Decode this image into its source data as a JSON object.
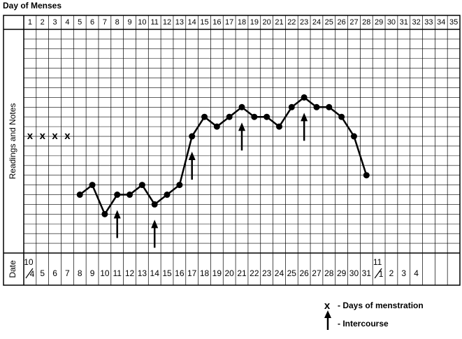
{
  "chart_data": {
    "type": "line",
    "title": "Day of Menses",
    "y_label": "Readings and Notes",
    "date_label": "Date",
    "categories": [
      "1",
      "2",
      "3",
      "4",
      "5",
      "6",
      "7",
      "8",
      "9",
      "10",
      "11",
      "12",
      "13",
      "14",
      "15",
      "16",
      "17",
      "18",
      "19",
      "20",
      "21",
      "22",
      "23",
      "24",
      "25",
      "26",
      "27",
      "28",
      "29",
      "30",
      "31",
      "32",
      "33",
      "34",
      "35"
    ],
    "values": [
      null,
      null,
      null,
      null,
      5,
      6,
      3,
      5,
      5,
      6,
      4,
      5,
      6,
      11,
      13,
      12,
      13,
      14,
      13,
      13,
      12,
      14,
      15,
      14,
      14,
      13,
      11,
      7,
      null,
      null,
      null,
      null,
      null,
      null,
      null
    ],
    "dates": [
      {
        "top": "10",
        "bottom": "4"
      },
      "5",
      "6",
      "7",
      "8",
      "9",
      "10",
      "11",
      "12",
      "13",
      "14",
      "15",
      "16",
      "17",
      "18",
      "19",
      "20",
      "21",
      "22",
      "23",
      "24",
      "25",
      "26",
      "27",
      "28",
      "29",
      "30",
      "31",
      {
        "top": "11",
        "bottom": "1"
      },
      "2",
      "3",
      "4",
      null,
      null,
      null
    ],
    "menses": {
      "symbol": "x",
      "label": "- Days of menstration",
      "values": [
        11,
        11,
        11,
        11,
        null,
        null,
        null,
        null,
        null,
        null,
        null,
        null,
        null,
        null,
        null,
        null,
        null,
        null,
        null,
        null,
        null,
        null,
        null,
        null,
        null,
        null,
        null,
        null,
        null,
        null,
        null,
        null,
        null,
        null,
        null
      ]
    },
    "intercourse": {
      "label": "- Intercourse",
      "days": [
        8,
        11,
        14,
        18,
        23
      ]
    },
    "ylim": [
      -1,
      22
    ],
    "grid": true,
    "color": "#000000"
  }
}
